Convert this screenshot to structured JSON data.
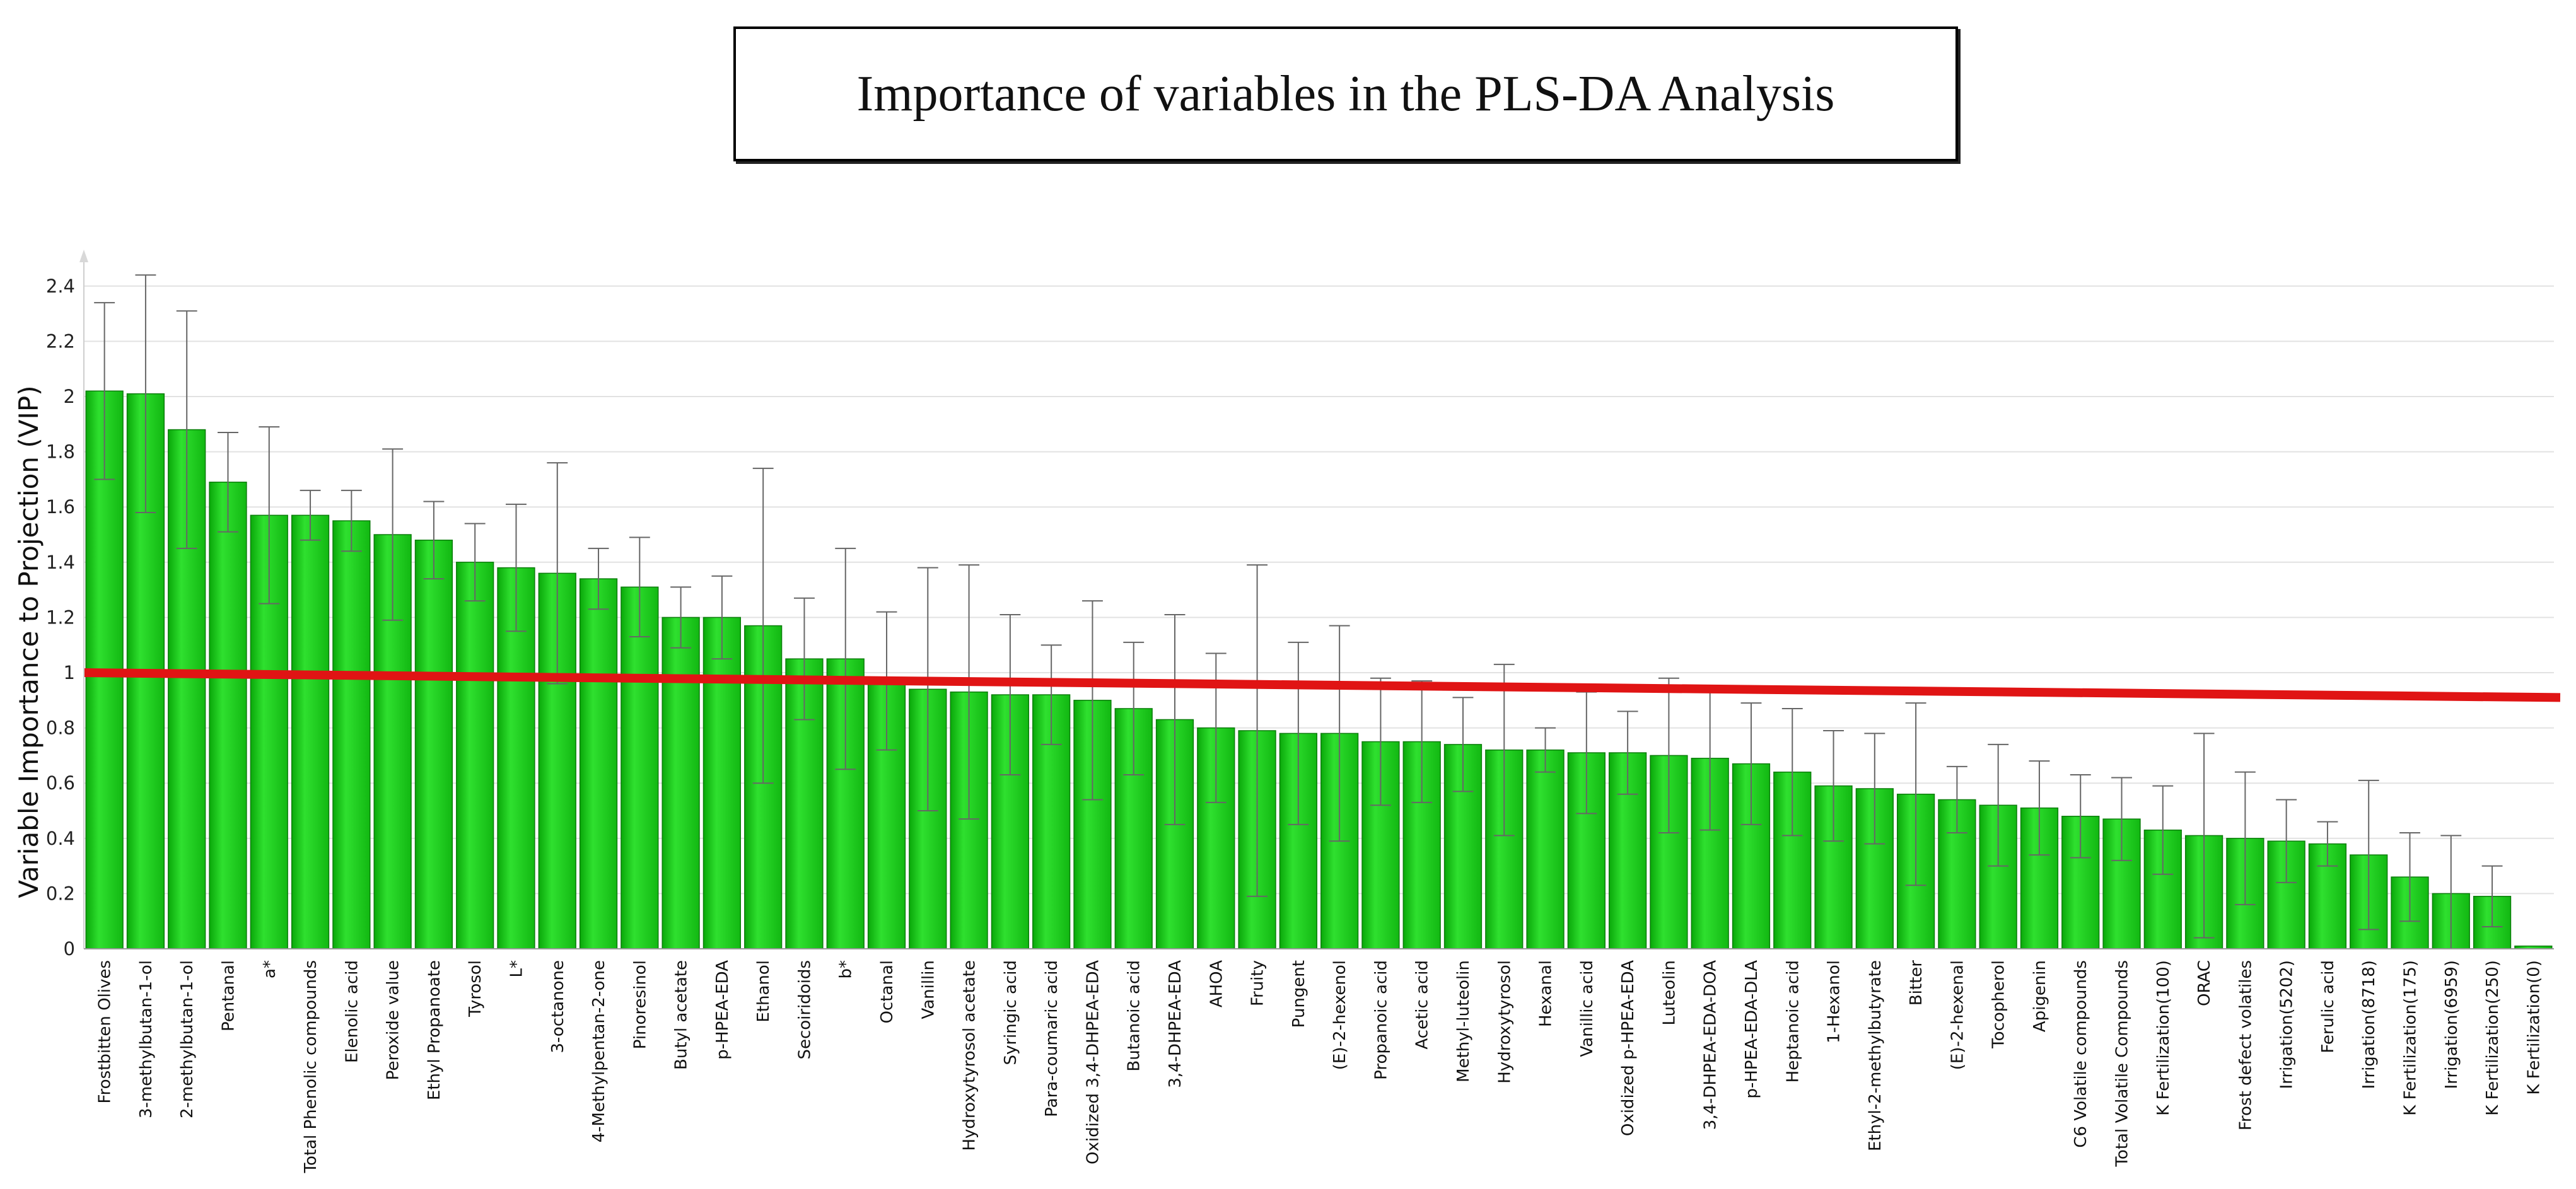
{
  "chart_data": {
    "type": "bar",
    "title": "Importance of variables in the PLS-DA Analysis",
    "xlabel": "",
    "ylabel": "Variable Importance to Projection (VIP)",
    "ylim": [
      0,
      2.5
    ],
    "yticks": [
      "0",
      "0.2",
      "0.4",
      "0.6",
      "0.8",
      "1",
      "1.2",
      "1.4",
      "1.6",
      "1.8",
      "2",
      "2.2",
      "2.4"
    ],
    "grid": true,
    "categories": [
      "Frostbitten Olives",
      "3-methylbutan-1-ol",
      "2-methylbutan-1-ol",
      "Pentanal",
      "a*",
      "Total Phenolic compounds",
      "Elenolic acid",
      "Peroxide value",
      "Ethyl  Propanoate",
      "Tyrosol",
      "L*",
      "3-octanone",
      "4-Methylpentan-2-one",
      "Pinoresinol",
      "Butyl acetate",
      "p-HPEA-EDA",
      "Ethanol",
      "Secoiridoids",
      "b*",
      "Octanal",
      "Vanillin",
      "Hydroxytyrosol acetate",
      "Syringic acid",
      "Para-coumaric acid",
      "Oxidized 3,4-DHPEA-EDA",
      "Butanoic acid",
      "3,4-DHPEA-EDA",
      "AHOA",
      "Fruity",
      "Pungent",
      "(E)-2-hexenol",
      "Propanoic acid",
      "Acetic acid",
      "Methyl-luteolin",
      "Hydroxytyrosol",
      "Hexanal",
      "Vanillic acid",
      "Oxidized p-HPEA-EDA",
      "Luteolin",
      "3,4-DHPEA-EDA-DOA",
      "p-HPEA-EDA-DLA",
      "Heptanoic acid",
      "1-Hexanol",
      "Ethyl-2-methylbutyrate",
      "Bitter",
      "(E)-2-hexenal",
      "Tocopherol",
      "Apigenin",
      "C6 Volatile compounds",
      "Total Volatile Compounds",
      "K Fertilization(100)",
      "ORAC",
      "Frost defect volatiles",
      "Irrigation(5202)",
      "Ferulic acid",
      "Irrigation(8718)",
      "K Fertilization(175)",
      "Irrigation(6959)",
      "K Fertilization(250)",
      "K Fertilization(0)"
    ],
    "series": [
      {
        "name": "VIP",
        "color": "#19c619",
        "values": [
          2.02,
          2.01,
          1.88,
          1.69,
          1.57,
          1.57,
          1.55,
          1.5,
          1.48,
          1.4,
          1.38,
          1.36,
          1.34,
          1.31,
          1.2,
          1.2,
          1.17,
          1.05,
          1.05,
          0.97,
          0.94,
          0.93,
          0.92,
          0.92,
          0.9,
          0.87,
          0.83,
          0.8,
          0.79,
          0.78,
          0.78,
          0.75,
          0.75,
          0.74,
          0.72,
          0.72,
          0.71,
          0.71,
          0.7,
          0.69,
          0.67,
          0.64,
          0.59,
          0.58,
          0.56,
          0.54,
          0.52,
          0.51,
          0.48,
          0.47,
          0.43,
          0.41,
          0.4,
          0.39,
          0.38,
          0.34,
          0.26,
          0.2,
          0.19,
          0.01
        ],
        "error": [
          0.32,
          0.43,
          0.43,
          0.18,
          0.32,
          0.09,
          0.11,
          0.31,
          0.14,
          0.14,
          0.23,
          0.4,
          0.11,
          0.18,
          0.11,
          0.15,
          0.57,
          0.22,
          0.4,
          0.25,
          0.44,
          0.46,
          0.29,
          0.18,
          0.36,
          0.24,
          0.38,
          0.27,
          0.6,
          0.33,
          0.39,
          0.23,
          0.22,
          0.17,
          0.31,
          0.08,
          0.22,
          0.15,
          0.28,
          0.26,
          0.22,
          0.23,
          0.2,
          0.2,
          0.33,
          0.12,
          0.22,
          0.17,
          0.15,
          0.15,
          0.16,
          0.37,
          0.24,
          0.15,
          0.08,
          0.27,
          0.16,
          0.21,
          0.11,
          0.0
        ]
      }
    ],
    "threshold_line": {
      "color": "#e01414",
      "start_value": 1.0,
      "end_value": 0.91
    },
    "legend": "none"
  }
}
